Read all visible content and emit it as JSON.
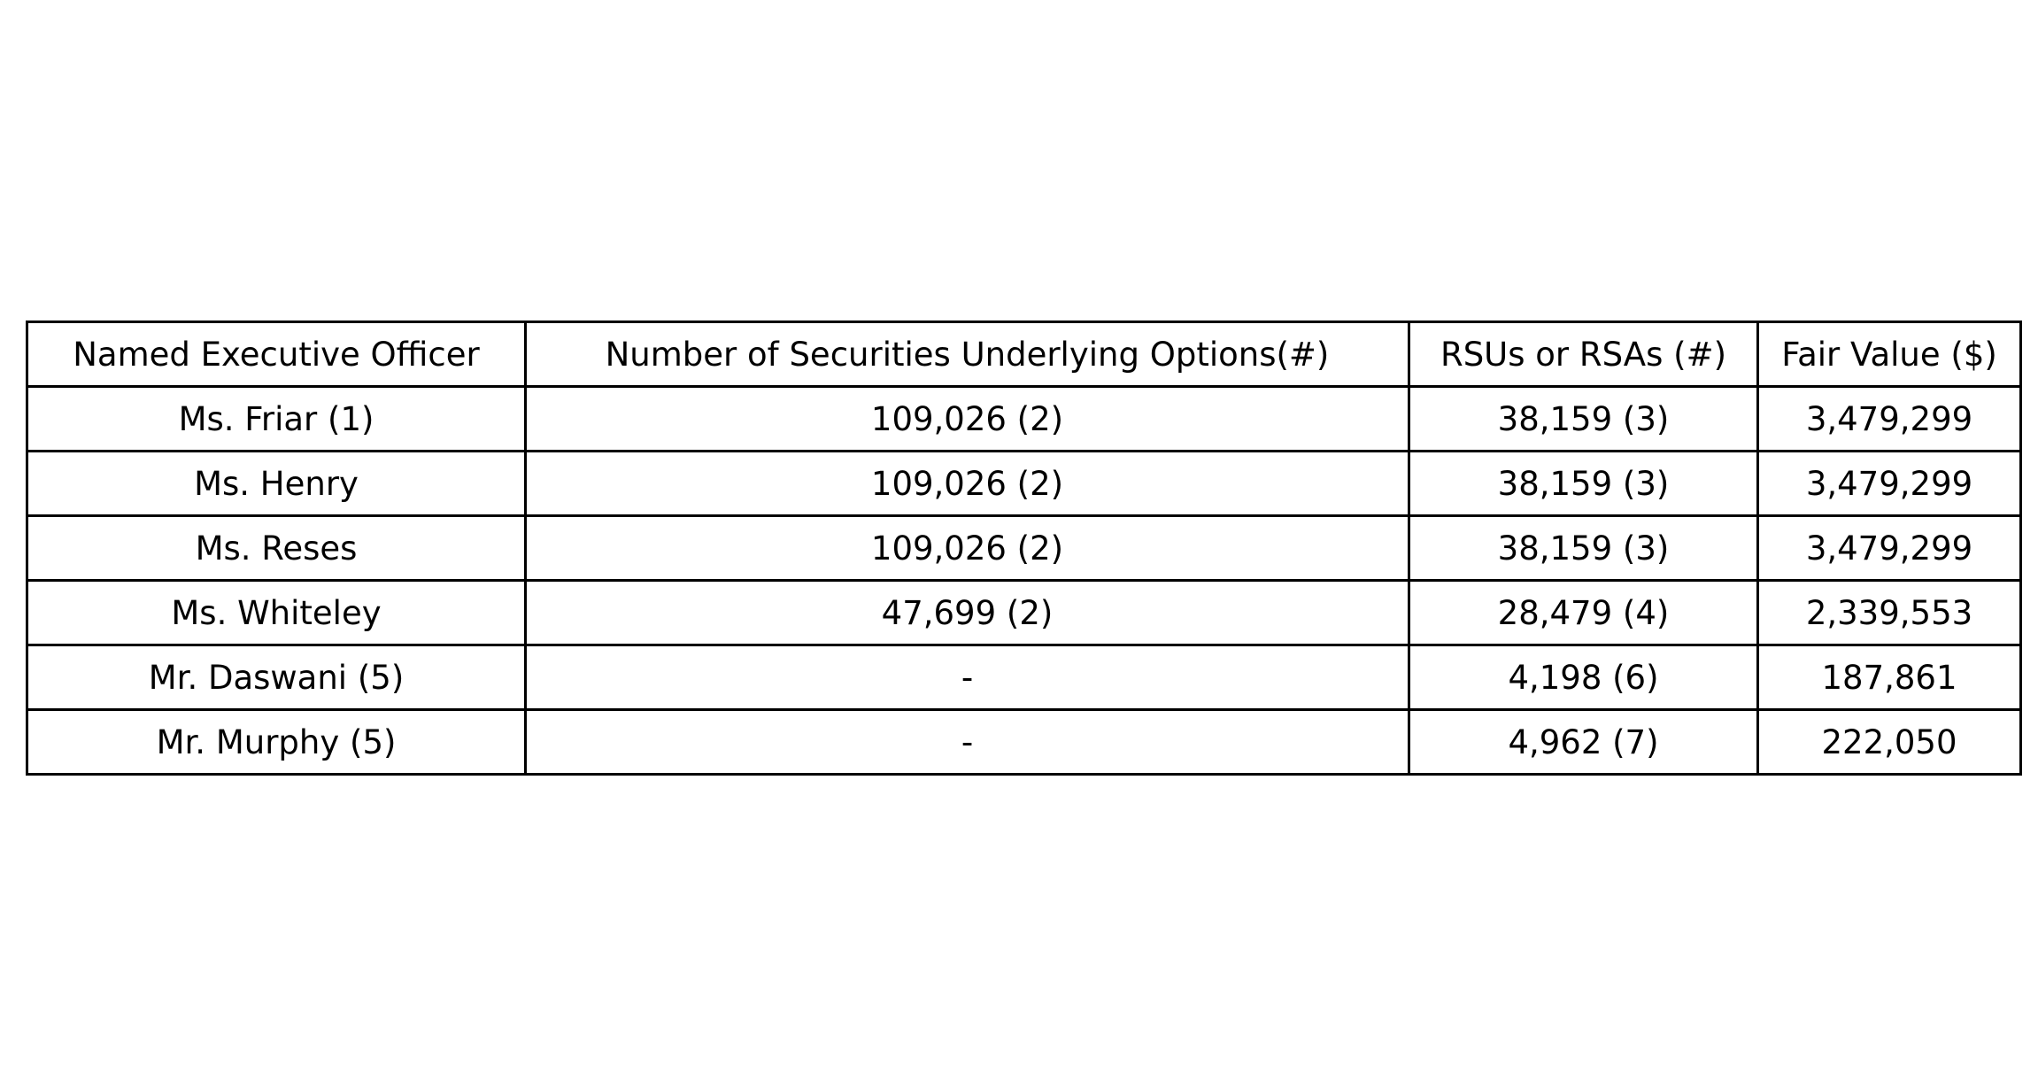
{
  "table": {
    "headers": [
      "Named Executive Officer",
      "Number of Securities Underlying Options(#)",
      "RSUs or RSAs (#)",
      "Fair Value ($)"
    ],
    "rows": [
      [
        "Ms. Friar (1)",
        "109,026 (2)",
        "38,159 (3)",
        "3,479,299"
      ],
      [
        "Ms. Henry",
        "109,026 (2)",
        "38,159 (3)",
        "3,479,299"
      ],
      [
        "Ms. Reses",
        "109,026 (2)",
        "38,159 (3)",
        "3,479,299"
      ],
      [
        "Ms. Whiteley",
        "47,699 (2)",
        "28,479 (4)",
        "2,339,553"
      ],
      [
        "Mr. Daswani (5)",
        "-",
        "4,198 (6)",
        "187,861"
      ],
      [
        "Mr. Murphy (5)",
        "-",
        "4,962 (7)",
        "222,050"
      ]
    ]
  }
}
